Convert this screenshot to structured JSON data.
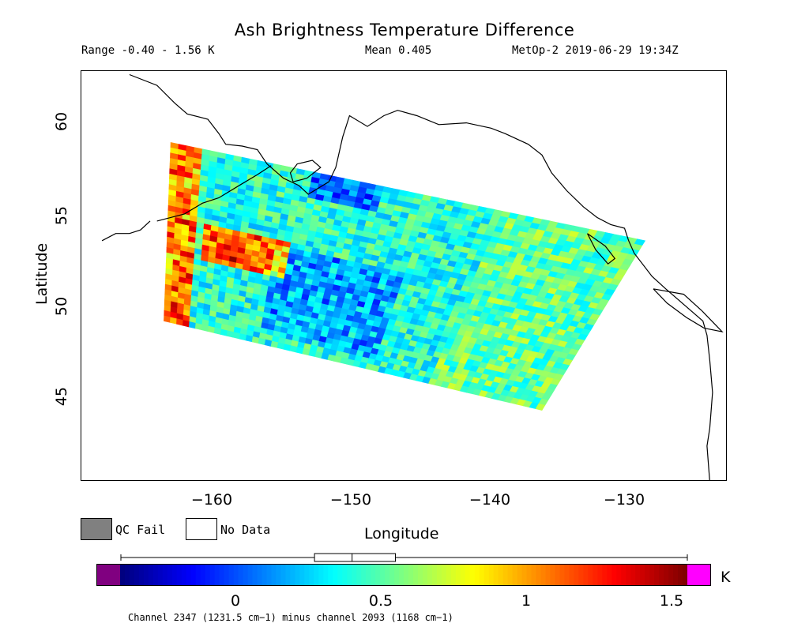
{
  "title": "Ash Brightness Temperature Difference",
  "info": {
    "range": "Range -0.40 - 1.56 K",
    "mean": "Mean 0.405",
    "satellite_time": "MetOp-2 2019-06-29 19:34Z"
  },
  "axes": {
    "ylabel": "Latitude",
    "xlabel": "Longitude",
    "yticks": [
      "60",
      "55",
      "50",
      "45"
    ],
    "xticks": [
      "−160",
      "−150",
      "−140",
      "−130"
    ]
  },
  "legend": {
    "qc_fail": "QC Fail",
    "no_data": "No Data",
    "qc_fail_color": "#808080",
    "no_data_color": "#ffffff"
  },
  "colorbar": {
    "unit": "K",
    "ticks": [
      "0",
      "0.5",
      "1",
      "1.5"
    ],
    "underflow_color": "#800080",
    "overflow_color": "#ff00ff",
    "box_summary": {
      "min": -0.4,
      "q1": 0.27,
      "median": 0.4,
      "q3": 0.55,
      "max": 1.56
    }
  },
  "caption": "Channel 2347 (1231.5 cm−1) minus channel 2093 (1168 cm−1)",
  "chart_data": {
    "type": "heatmap",
    "title": "Ash Brightness Temperature Difference",
    "xlabel": "Longitude",
    "ylabel": "Latitude",
    "xlim": [
      -170,
      -123
    ],
    "ylim": [
      40,
      63
    ],
    "colorbar_range": [
      -0.4,
      1.56
    ],
    "range": [
      -0.4,
      1.56
    ],
    "mean": 0.405,
    "swath_corners": [
      [
        -163.5,
        59.0
      ],
      [
        -129.0,
        53.5
      ],
      [
        -136.5,
        44.0
      ],
      [
        -164.0,
        49.0
      ]
    ]
  }
}
